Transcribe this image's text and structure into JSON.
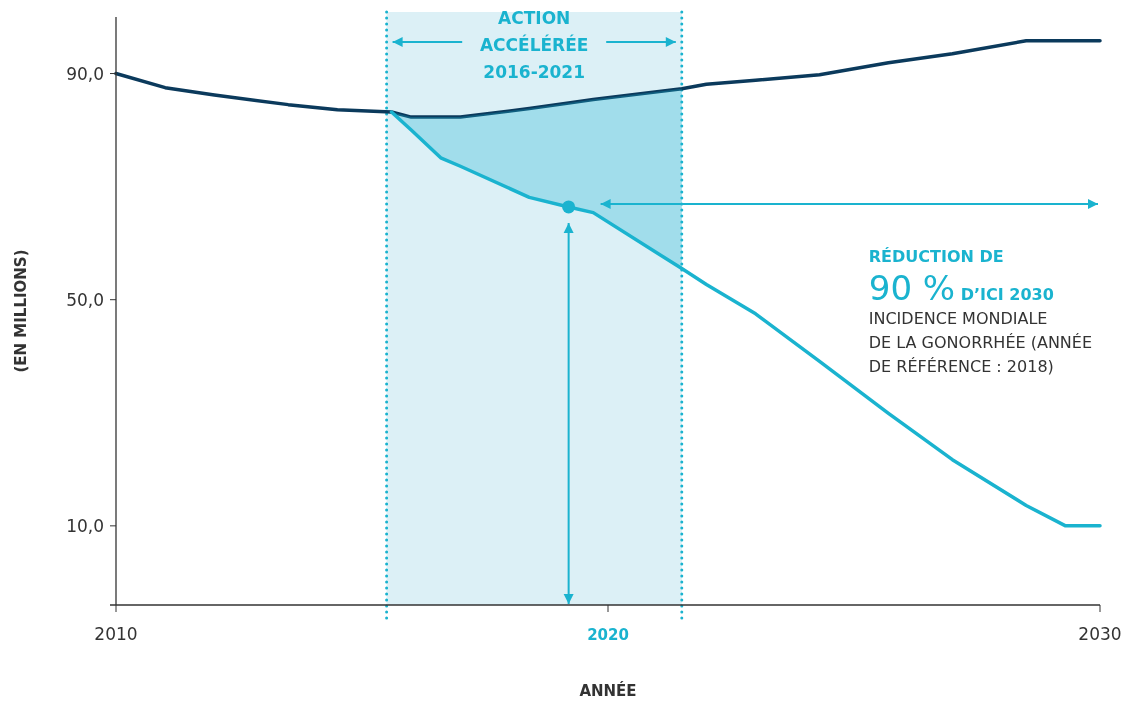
{
  "chart_data": {
    "type": "line",
    "xlabel": "ANNÉE",
    "ylabel": "(EN MILLIONS)",
    "x": [
      2010,
      2011,
      2012,
      2013.5,
      2014.5,
      2015.6,
      2016,
      2016.6,
      2017,
      2018.4,
      2019.2,
      2019.7,
      2021.5,
      2022,
      2023,
      2024.3,
      2025.7,
      2027,
      2028.5,
      2029.3,
      2030
    ],
    "series": [
      {
        "color": "#0b3a5c",
        "values": [
          90,
          87.5,
          86.2,
          84.5,
          83.6,
          83.2,
          82.3,
          82.3,
          82.3,
          83.8,
          84.8,
          85.4,
          87.3,
          88.1,
          88.8,
          89.8,
          91.9,
          93.5,
          95.8,
          95.8,
          95.8
        ]
      },
      {
        "color": "#1ab3cf",
        "values": [
          null,
          null,
          null,
          null,
          null,
          83.2,
          80,
          75.1,
          73.6,
          68.1,
          66.4,
          65.4,
          55.5,
          52.7,
          47.5,
          39.1,
          29.9,
          21.7,
          13.6,
          10,
          10
        ],
        "lower": [
          null,
          null,
          null,
          null,
          null,
          83.2,
          80,
          75.1,
          73.6,
          68.1,
          66.4,
          65.4,
          55.5,
          null,
          null,
          null,
          null,
          null,
          null,
          null,
          null
        ],
        "upper": [
          null,
          null,
          null,
          null,
          null,
          83.2,
          82.3,
          82.3,
          82.3,
          83.8,
          84.8,
          85.4,
          87.3,
          null,
          null,
          null,
          null,
          null,
          null,
          null,
          null
        ]
      },
      {
        "type": "scatter",
        "color": "#1ab3cf",
        "marker": "circle",
        "x": [
          2019.2
        ],
        "values": [
          66.4
        ]
      }
    ],
    "xlim": [
      2010,
      2030
    ],
    "xticks": [
      2010,
      2020,
      2030
    ],
    "ylim": [
      -4,
      100
    ],
    "yticks": [
      {
        "value": 10,
        "label": "10,0"
      },
      {
        "value": 50,
        "label": "50,0"
      },
      {
        "value": 90,
        "label": "90,0"
      }
    ],
    "bands": [
      {
        "axis": "x",
        "from": 2015.5,
        "to": 2021.5,
        "label": "ACTION ACCÉLÉRÉE 2016-2021",
        "color": "#dcf0f6"
      }
    ],
    "ref_lines": [
      {
        "axis": "x",
        "value": 2015.5,
        "color": "#1ab3cf",
        "line_style": "dotted"
      },
      {
        "axis": "x",
        "value": 2021.5,
        "color": "#1ab3cf",
        "line_style": "dotted"
      }
    ],
    "annotations": [
      "RÉDUCTION DE",
      "90 % D’ICI 2030",
      "INCIDENCE MONDIALE",
      "DE LA GONORRHÉE (ANNÉE",
      "DE RÉFÉRENCE : 2018)"
    ],
    "grid": false,
    "marker": "none",
    "line_style": "solid"
  }
}
